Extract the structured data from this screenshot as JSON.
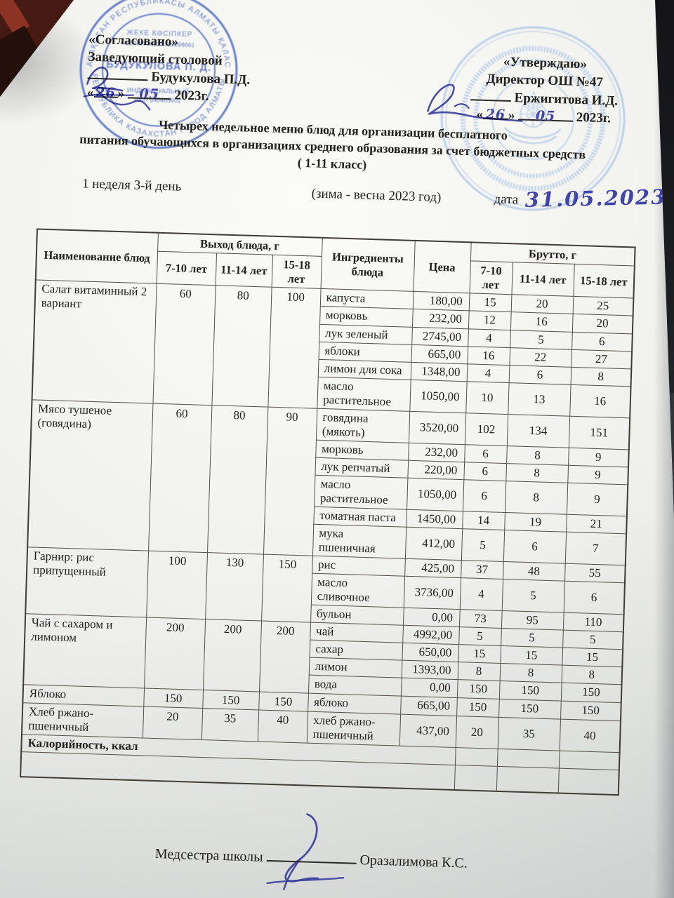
{
  "approval_left": {
    "heading": "«Согласовано»",
    "role": "Заведующий столовой",
    "name": "Будукулова П.Д.",
    "quote_open": "«",
    "quote_close": "»",
    "day": "26",
    "month": "05",
    "year_suffix": "2023г."
  },
  "approval_right": {
    "heading": "«Утверждаю»",
    "org": "Директор ОШ №47",
    "name": "Ержигитова И.Д.",
    "quote_open": "«",
    "quote_close": "»",
    "day": "26",
    "month": "05",
    "year_suffix": "2023г."
  },
  "title": {
    "line1": "Четырех недельное меню блюд для организации бесплатного",
    "line2": "питания обучающихся в организациях среднего образования за счет бюджетных средств",
    "line3": "( 1-11 класс)"
  },
  "subheader": {
    "week": "1 неделя 3-й день",
    "season": "(зима - весна 2023 год)",
    "date_label": "дата",
    "date_value": "31.05.2023"
  },
  "table": {
    "header": {
      "dish": "Наименование блюд",
      "out_group": "Выход блюда, г",
      "ingredients": "Ингредиенты блюда",
      "price": "Цена",
      "brutto_group": "Брутто, г",
      "ages": [
        "7-10 лет",
        "11-14 лет",
        "15-18 лет"
      ]
    },
    "blocks": [
      {
        "dish": "Салат витаминный 2 вариант",
        "out": [
          "60",
          "80",
          "100"
        ],
        "rows": [
          [
            "капуста",
            "180,00",
            "15",
            "20",
            "25"
          ],
          [
            "морковь",
            "232,00",
            "12",
            "16",
            "20"
          ],
          [
            "лук зеленый",
            "2745,00",
            "4",
            "5",
            "6"
          ],
          [
            "яблоки",
            "665,00",
            "16",
            "22",
            "27"
          ],
          [
            "лимон для сока",
            "1348,00",
            "4",
            "6",
            "8"
          ],
          [
            "масло растительное",
            "1050,00",
            "10",
            "13",
            "16"
          ]
        ]
      },
      {
        "dish": "Мясо тушеное (говядина)",
        "out": [
          "60",
          "80",
          "90"
        ],
        "rows": [
          [
            "говядина (мякоть)",
            "3520,00",
            "102",
            "134",
            "151"
          ],
          [
            "морковь",
            "232,00",
            "6",
            "8",
            "9"
          ],
          [
            "лук репчатый",
            "220,00",
            "6",
            "8",
            "9"
          ],
          [
            "масло растительное",
            "1050,00",
            "6",
            "8",
            "9"
          ],
          [
            "томатная паста",
            "1450,00",
            "14",
            "19",
            "21"
          ],
          [
            "мука пшеничная",
            "412,00",
            "5",
            "6",
            "7"
          ]
        ]
      },
      {
        "dish": "Гарнир: рис припущенный",
        "out": [
          "100",
          "130",
          "150"
        ],
        "rows": [
          [
            "рис",
            "425,00",
            "37",
            "48",
            "55"
          ],
          [
            "масло сливочное",
            "3736,00",
            "4",
            "5",
            "6"
          ],
          [
            "бульон",
            "0,00",
            "73",
            "95",
            "110"
          ]
        ]
      },
      {
        "dish": "Чай с сахаром и лимоном",
        "out": [
          "200",
          "200",
          "200"
        ],
        "rows": [
          [
            "чай",
            "4992,00",
            "5",
            "5",
            "5"
          ],
          [
            "сахар",
            "650,00",
            "15",
            "15",
            "15"
          ],
          [
            "лимон",
            "1393,00",
            "8",
            "8",
            "8"
          ],
          [
            "вода",
            "0,00",
            "150",
            "150",
            "150"
          ]
        ]
      },
      {
        "dish": "Яблоко",
        "out": [
          "150",
          "150",
          "150"
        ],
        "rows": [
          [
            "яблоко",
            "665,00",
            "150",
            "150",
            "150"
          ]
        ]
      },
      {
        "dish": "Хлеб ржано-пшеничный",
        "out": [
          "20",
          "35",
          "40"
        ],
        "rows": [
          [
            "хлеб ржано-пшеничный",
            "437,00",
            "20",
            "35",
            "40"
          ]
        ]
      }
    ],
    "calorie_label": "Калорийность, ккал"
  },
  "signoff": {
    "role": "Медсестра школы",
    "name": "Оразалимова К.С."
  },
  "stamps": {
    "left": {
      "ring_top": "ҚАЗАҚСТАН РЕСПУБЛИКАСЫ АЛМАТЫ ҚАЛАСЫ",
      "ring_bottom": "РЕСПУБЛИКА КАЗАХСТАН ГОРОД АЛМАТЫ",
      "line1": "ЖЕКЕ КӘСІПКЕР",
      "line2": "СЕРИЯ 10915 №0098661",
      "name": "БУДУКУЛОВА П. Д.",
      "line3": "ИНДИВИДУАЛЬНЫЙ",
      "line4": "ИИН 540405402"
    }
  },
  "colors": {
    "ink_blue": "#4144a8",
    "stamp_blue": "#5570c2",
    "stamp_light_blue": "#a6c0e5",
    "paper": "#f3f3f0",
    "background": "#16151a"
  }
}
